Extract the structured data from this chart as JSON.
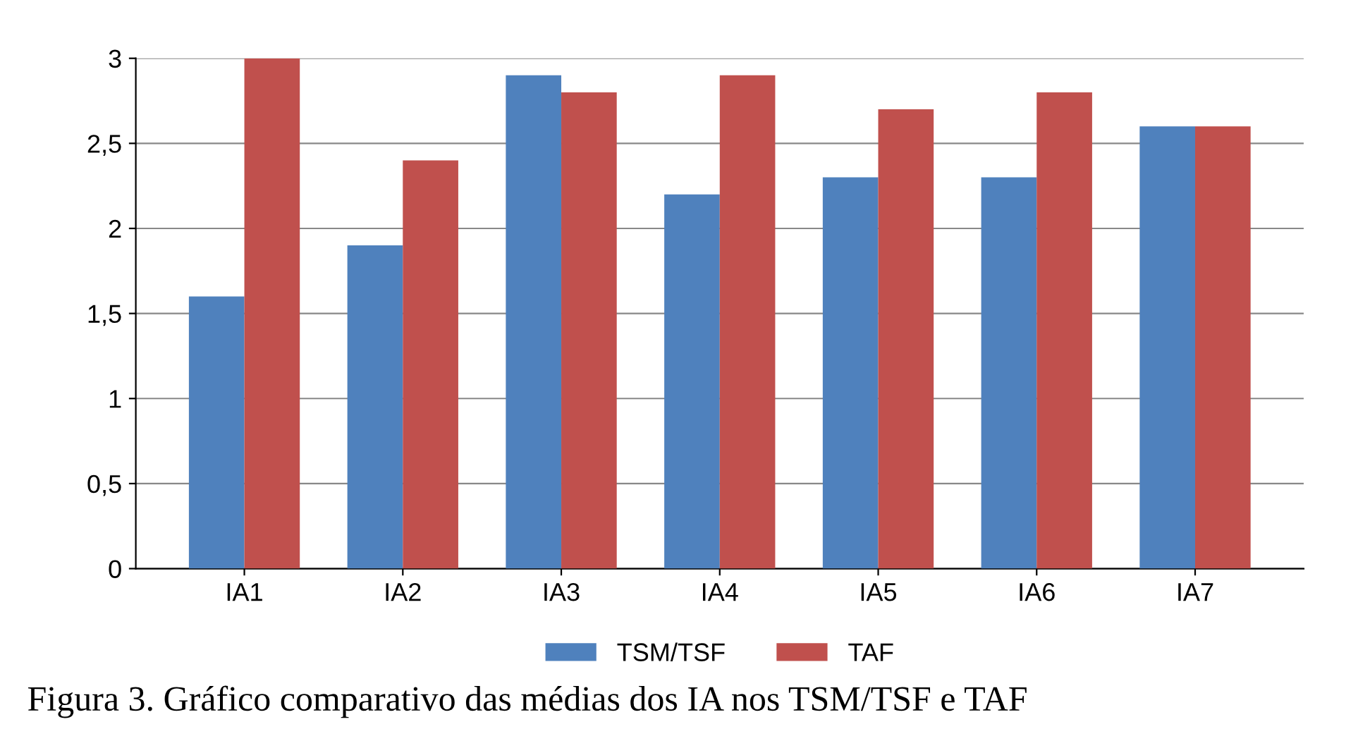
{
  "chart_data": {
    "type": "bar",
    "categories": [
      "IA1",
      "IA2",
      "IA3",
      "IA4",
      "IA5",
      "IA6",
      "IA7"
    ],
    "series": [
      {
        "name": "TSM/TSF",
        "color": "#4f81bd",
        "values": [
          1.6,
          1.9,
          2.9,
          2.2,
          2.3,
          2.3,
          2.6
        ]
      },
      {
        "name": "TAF",
        "color": "#c0504d",
        "values": [
          3.0,
          2.4,
          2.8,
          2.9,
          2.7,
          2.8,
          2.6
        ]
      }
    ],
    "ylim": [
      0,
      3
    ],
    "yticks": [
      0,
      {
        "value": 0.5,
        "label": "0,5"
      },
      1,
      {
        "value": 1.5,
        "label": "1,5"
      },
      2,
      {
        "value": 2.5,
        "label": "2,5"
      },
      3
    ],
    "grid": "y",
    "legend": "bottom",
    "annotations": [
      "Figura 3. Gráfico comparativo das médias dos IA nos TSM/TSF e TAF"
    ]
  }
}
